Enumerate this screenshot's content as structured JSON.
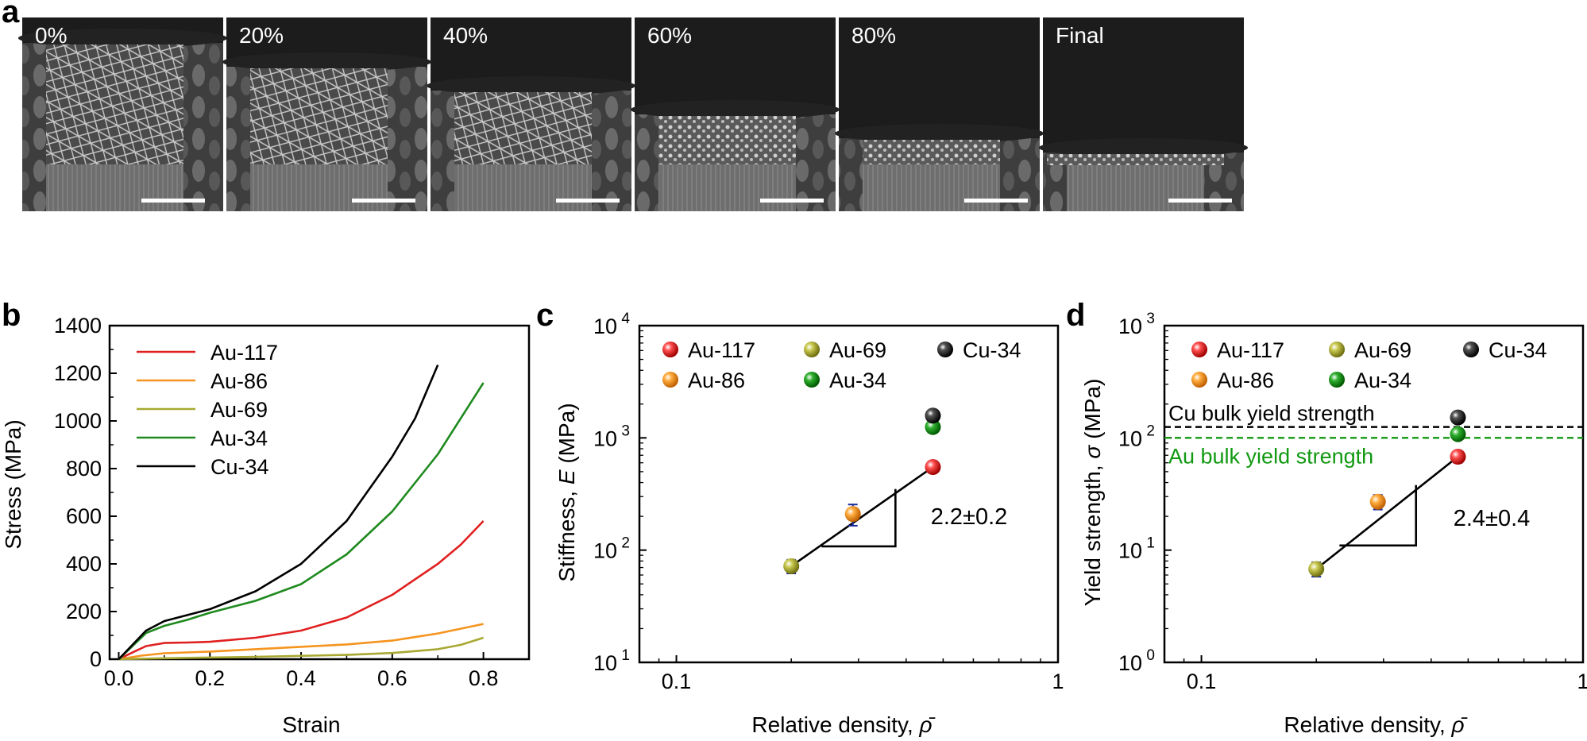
{
  "panels": {
    "a": {
      "letter": "a",
      "frames": [
        {
          "label": "0%",
          "compression": 0.0
        },
        {
          "label": "20%",
          "compression": 0.2
        },
        {
          "label": "40%",
          "compression": 0.4
        },
        {
          "label": "60%",
          "compression": 0.6
        },
        {
          "label": "80%",
          "compression": 0.8
        },
        {
          "label": "Final",
          "compression": 0.92
        }
      ]
    },
    "b": {
      "letter": "b"
    },
    "c": {
      "letter": "c",
      "slope_label": "2.2±0.2"
    },
    "d": {
      "letter": "d",
      "slope_label": "2.4±0.4"
    }
  },
  "colors": {
    "Au-117": "#e02020",
    "Au-86": "#f5941e",
    "Au-69": "#a8a832",
    "Au-34": "#1f8a1f",
    "Cu-34": "#000000",
    "au_bulk_line": "#119911",
    "cu_bulk_line": "#000000",
    "errorbar": "#1a2a9a"
  },
  "chart_data": [
    {
      "panel": "b",
      "type": "line",
      "xlabel": "Strain",
      "ylabel": "Stress (MPa)",
      "xlim": [
        -0.02,
        0.9
      ],
      "ylim": [
        0,
        1400
      ],
      "xticks": [
        "0.0",
        "0.2",
        "0.4",
        "0.6",
        "0.8"
      ],
      "yticks": [
        "0",
        "200",
        "400",
        "600",
        "800",
        "1000",
        "1200",
        "1400"
      ],
      "legend_position": "top-left",
      "series": [
        {
          "name": "Au-117",
          "x": [
            0,
            0.03,
            0.06,
            0.1,
            0.15,
            0.2,
            0.3,
            0.4,
            0.5,
            0.6,
            0.7,
            0.75,
            0.8
          ],
          "y": [
            0,
            28,
            55,
            68,
            70,
            73,
            90,
            120,
            175,
            270,
            400,
            480,
            580
          ]
        },
        {
          "name": "Au-86",
          "x": [
            0,
            0.05,
            0.1,
            0.2,
            0.3,
            0.4,
            0.5,
            0.6,
            0.7,
            0.8
          ],
          "y": [
            0,
            15,
            25,
            32,
            42,
            52,
            62,
            78,
            108,
            148
          ]
        },
        {
          "name": "Au-69",
          "x": [
            0,
            0.1,
            0.2,
            0.3,
            0.4,
            0.5,
            0.6,
            0.7,
            0.75,
            0.8
          ],
          "y": [
            0,
            4,
            7,
            10,
            14,
            18,
            26,
            42,
            60,
            90
          ]
        },
        {
          "name": "Au-34",
          "x": [
            0,
            0.03,
            0.06,
            0.1,
            0.15,
            0.2,
            0.3,
            0.4,
            0.5,
            0.6,
            0.7,
            0.8
          ],
          "y": [
            0,
            55,
            110,
            140,
            165,
            195,
            245,
            315,
            440,
            620,
            860,
            1160
          ]
        },
        {
          "name": "Cu-34",
          "x": [
            0,
            0.03,
            0.06,
            0.1,
            0.15,
            0.2,
            0.3,
            0.4,
            0.5,
            0.6,
            0.65,
            0.7
          ],
          "y": [
            0,
            60,
            120,
            160,
            185,
            210,
            285,
            400,
            580,
            850,
            1010,
            1235
          ]
        }
      ]
    },
    {
      "panel": "c",
      "type": "scatter",
      "xscale": "log",
      "yscale": "log",
      "xlabel": "Relative density, ρ̄",
      "ylabel": "Stiffness, E (MPa)",
      "xlim": [
        0.08,
        1
      ],
      "ylim": [
        10,
        10000
      ],
      "xticks": [
        "0.1",
        "1"
      ],
      "yticks": [
        "10^1",
        "10^2",
        "10^3",
        "10^4"
      ],
      "legend_position": "top",
      "series": [
        {
          "name": "Au-117",
          "x": [
            0.47
          ],
          "y": [
            550
          ],
          "yerr": [
            40
          ]
        },
        {
          "name": "Au-86",
          "x": [
            0.29
          ],
          "y": [
            210
          ],
          "yerr": [
            45
          ]
        },
        {
          "name": "Au-69",
          "x": [
            0.2
          ],
          "y": [
            72
          ],
          "yerr": [
            10
          ]
        },
        {
          "name": "Au-34",
          "x": [
            0.47
          ],
          "y": [
            1250
          ],
          "yerr": [
            60
          ]
        },
        {
          "name": "Cu-34",
          "x": [
            0.47
          ],
          "y": [
            1580
          ],
          "yerr": [
            90
          ]
        }
      ],
      "fit_line": {
        "x": [
          0.2,
          0.47
        ],
        "y": [
          72,
          550
        ]
      },
      "slope_triangle": {
        "x": [
          0.24,
          0.375
        ],
        "y": [
          108,
          350
        ]
      }
    },
    {
      "panel": "d",
      "type": "scatter",
      "xscale": "log",
      "yscale": "log",
      "xlabel": "Relative density, ρ̄",
      "ylabel": "Yield strength, σ (MPa)",
      "xlim": [
        0.08,
        1
      ],
      "ylim": [
        1,
        1000
      ],
      "xticks": [
        "0.1",
        "1"
      ],
      "yticks": [
        "10^0",
        "10^1",
        "10^2",
        "10^3"
      ],
      "legend_position": "top",
      "series": [
        {
          "name": "Au-117",
          "x": [
            0.47
          ],
          "y": [
            68
          ],
          "yerr": [
            8
          ]
        },
        {
          "name": "Au-86",
          "x": [
            0.29
          ],
          "y": [
            27
          ],
          "yerr": [
            4
          ]
        },
        {
          "name": "Au-69",
          "x": [
            0.2
          ],
          "y": [
            6.8
          ],
          "yerr": [
            1
          ]
        },
        {
          "name": "Au-34",
          "x": [
            0.47
          ],
          "y": [
            108
          ],
          "yerr": [
            10
          ]
        },
        {
          "name": "Cu-34",
          "x": [
            0.47
          ],
          "y": [
            152
          ],
          "yerr": [
            15
          ]
        }
      ],
      "fit_line": {
        "x": [
          0.2,
          0.47
        ],
        "y": [
          6.8,
          68
        ]
      },
      "slope_triangle": {
        "x": [
          0.23,
          0.365
        ],
        "y": [
          11,
          38
        ]
      },
      "reference_lines": [
        {
          "label": "Cu bulk yield strength",
          "y": 125
        },
        {
          "label": "Au bulk yield strength",
          "y": 100
        }
      ]
    }
  ]
}
